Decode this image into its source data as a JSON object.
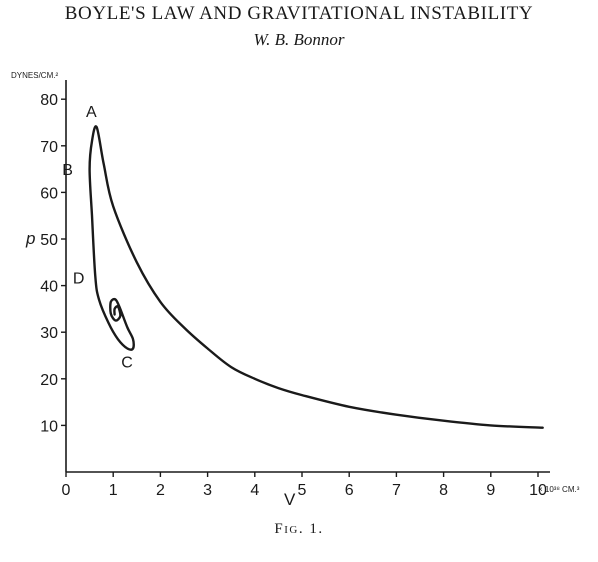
{
  "header": {
    "title": "BOYLE'S LAW AND GRAVITATIONAL INSTABILITY",
    "author": "W. B. Bonnor"
  },
  "figure": {
    "caption": "Fig. 1."
  },
  "chart_data": {
    "type": "line",
    "xlabel": "V",
    "ylabel": "p",
    "x_unit": "× 10³⁸ CM.³",
    "y_unit": "DYNES/CM.²",
    "xlim": [
      0,
      10.3
    ],
    "ylim": [
      0,
      85
    ],
    "x_ticks": [
      "0",
      "1",
      "2",
      "3",
      "4",
      "5",
      "6",
      "7",
      "8",
      "9",
      "10"
    ],
    "y_ticks": [
      "10",
      "20",
      "30",
      "40",
      "50",
      "60",
      "70",
      "80"
    ],
    "grid": false,
    "series": [
      {
        "points": [
          [
            10.1,
            9.5
          ],
          [
            9.0,
            10.0
          ],
          [
            8.0,
            11.0
          ],
          [
            7.0,
            12.3
          ],
          [
            6.0,
            14.0
          ],
          [
            5.0,
            16.5
          ],
          [
            4.5,
            18.0
          ],
          [
            4.0,
            20.0
          ],
          [
            3.5,
            22.5
          ],
          [
            3.0,
            26.5
          ],
          [
            2.5,
            31.0
          ],
          [
            2.0,
            36.5
          ],
          [
            1.5,
            45.0
          ],
          [
            1.0,
            57.0
          ],
          [
            0.8,
            66.0
          ],
          [
            0.65,
            74.0
          ],
          [
            0.55,
            71.0
          ],
          [
            0.5,
            65.0
          ],
          [
            0.55,
            55.0
          ],
          [
            0.62,
            42.0
          ],
          [
            0.7,
            37.0
          ],
          [
            0.9,
            32.0
          ],
          [
            1.1,
            28.5
          ],
          [
            1.3,
            26.5
          ],
          [
            1.42,
            26.5
          ],
          [
            1.42,
            28.5
          ],
          [
            1.3,
            31.0
          ],
          [
            1.15,
            35.0
          ],
          [
            1.05,
            37.0
          ],
          [
            0.95,
            36.5
          ],
          [
            0.95,
            34.0
          ],
          [
            1.05,
            32.5
          ],
          [
            1.15,
            33.5
          ],
          [
            1.1,
            35.5
          ],
          [
            1.03,
            35.0
          ],
          [
            1.03,
            33.8
          ]
        ]
      }
    ],
    "point_labels": [
      {
        "text": "A",
        "x": 0.6,
        "y": 74.0
      },
      {
        "text": "B",
        "x": 0.5,
        "y": 65.0
      },
      {
        "text": "D",
        "x": 0.65,
        "y": 40.5
      },
      {
        "text": "C",
        "x": 1.42,
        "y": 26.5
      }
    ]
  }
}
